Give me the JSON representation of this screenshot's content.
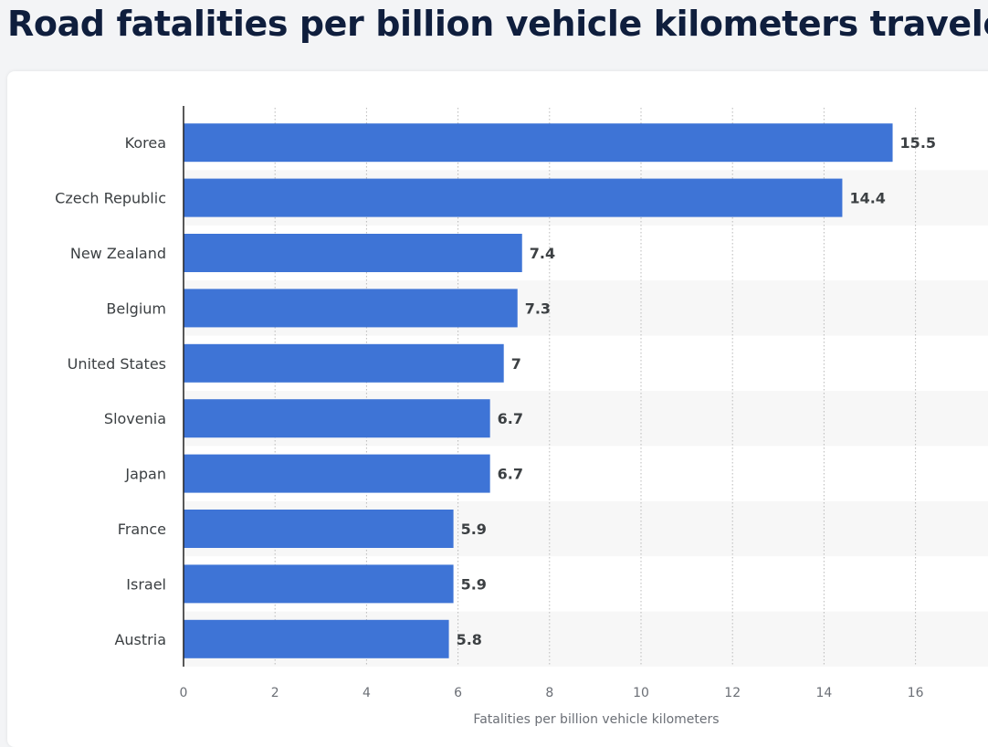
{
  "page": {
    "title": "Road fatalities per billion vehicle kilometers traveled"
  },
  "colors": {
    "bar": "#3e74d6",
    "band": "#f7f7f7",
    "grid": "#b9b9b9",
    "axis": "#222222"
  },
  "chart_data": {
    "type": "bar",
    "orientation": "horizontal",
    "title": "Road fatalities per billion vehicle kilometers traveled",
    "categories": [
      "Korea",
      "Czech Republic",
      "New Zealand",
      "Belgium",
      "United States",
      "Slovenia",
      "Japan",
      "France",
      "Israel",
      "Austria"
    ],
    "values": [
      15.5,
      14.4,
      7.4,
      7.3,
      7,
      6.7,
      6.7,
      5.9,
      5.9,
      5.8
    ],
    "value_labels": [
      "15.5",
      "14.4",
      "7.4",
      "7.3",
      "7",
      "6.7",
      "6.7",
      "5.9",
      "5.9",
      "5.8"
    ],
    "xlabel": "Fatalities per billion vehicle kilometers",
    "ylabel": "",
    "xlim": [
      0,
      17.5
    ],
    "xticks": [
      0,
      2,
      4,
      6,
      8,
      10,
      12,
      14,
      16
    ],
    "xtick_labels": [
      "0",
      "2",
      "4",
      "6",
      "8",
      "10",
      "12",
      "14",
      "16"
    ],
    "grid": true,
    "legend": "none"
  }
}
